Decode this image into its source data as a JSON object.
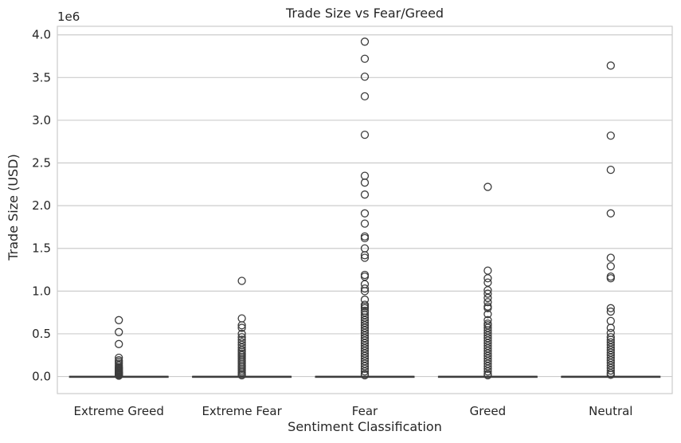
{
  "chart_data": {
    "type": "box",
    "title": "Trade Size vs Fear/Greed",
    "xlabel": "Sentiment Classification",
    "ylabel": "Trade Size (USD)",
    "y_offset_label": "1e6",
    "categories": [
      "Extreme Greed",
      "Extreme Fear",
      "Fear",
      "Greed",
      "Neutral"
    ],
    "ylim": [
      -0.2,
      4.1
    ],
    "yticks": [
      0.0,
      0.5,
      1.0,
      1.5,
      2.0,
      2.5,
      3.0,
      3.5,
      4.0
    ],
    "ytick_labels": [
      "0.0",
      "0.5",
      "1.0",
      "1.5",
      "2.0",
      "2.5",
      "3.0",
      "3.5",
      "4.0"
    ],
    "grid": true,
    "boxes": [
      {
        "category": "Extreme Greed",
        "q1": 0.0,
        "median": 0.0005,
        "q3": 0.001,
        "whisker_low": 0.0,
        "whisker_high": 0.007,
        "outliers": [
          0.66,
          0.52,
          0.38,
          0.22,
          0.19,
          0.17,
          0.15,
          0.13,
          0.11,
          0.1,
          0.09,
          0.08,
          0.07,
          0.06,
          0.05,
          0.045,
          0.04,
          0.035,
          0.03,
          0.025,
          0.02,
          0.015,
          0.01
        ]
      },
      {
        "category": "Extreme Fear",
        "q1": 0.0,
        "median": 0.0005,
        "q3": 0.001,
        "whisker_low": 0.0,
        "whisker_high": 0.007,
        "outliers": [
          1.12,
          0.68,
          0.6,
          0.57,
          0.5,
          0.46,
          0.43,
          0.4,
          0.37,
          0.34,
          0.31,
          0.29,
          0.27,
          0.25,
          0.23,
          0.21,
          0.19,
          0.17,
          0.15,
          0.13,
          0.11,
          0.09,
          0.07,
          0.05,
          0.03,
          0.015
        ]
      },
      {
        "category": "Fear",
        "q1": 0.0,
        "median": 0.0005,
        "q3": 0.001,
        "whisker_low": 0.0,
        "whisker_high": 0.007,
        "outliers": [
          3.92,
          3.72,
          3.51,
          3.28,
          2.83,
          2.35,
          2.27,
          2.13,
          1.91,
          1.79,
          1.64,
          1.62,
          1.5,
          1.42,
          1.39,
          1.19,
          1.17,
          1.08,
          1.03,
          1.0,
          0.9,
          0.84,
          0.82,
          0.8,
          0.77,
          0.75,
          0.72,
          0.69,
          0.66,
          0.63,
          0.6,
          0.57,
          0.54,
          0.51,
          0.48,
          0.45,
          0.42,
          0.39,
          0.36,
          0.33,
          0.3,
          0.27,
          0.24,
          0.21,
          0.18,
          0.15,
          0.12,
          0.09,
          0.06,
          0.03,
          0.015
        ]
      },
      {
        "category": "Greed",
        "q1": 0.0,
        "median": 0.0005,
        "q3": 0.001,
        "whisker_low": 0.0,
        "whisker_high": 0.007,
        "outliers": [
          2.22,
          1.24,
          1.15,
          1.1,
          1.01,
          0.97,
          0.92,
          0.87,
          0.82,
          0.8,
          0.73,
          0.66,
          0.62,
          0.6,
          0.57,
          0.54,
          0.51,
          0.48,
          0.45,
          0.42,
          0.39,
          0.36,
          0.33,
          0.3,
          0.27,
          0.24,
          0.21,
          0.18,
          0.15,
          0.12,
          0.09,
          0.06,
          0.03,
          0.015
        ]
      },
      {
        "category": "Neutral",
        "q1": 0.0,
        "median": 0.0005,
        "q3": 0.001,
        "whisker_low": 0.0,
        "whisker_high": 0.007,
        "outliers": [
          3.64,
          2.82,
          2.42,
          1.91,
          1.39,
          1.29,
          1.17,
          1.15,
          0.8,
          0.76,
          0.65,
          0.57,
          0.51,
          0.46,
          0.43,
          0.4,
          0.37,
          0.34,
          0.31,
          0.28,
          0.25,
          0.22,
          0.19,
          0.16,
          0.13,
          0.1,
          0.07,
          0.04,
          0.02
        ]
      }
    ],
    "colors": {
      "box_edge": "#3d3d3d",
      "box_fill": "#ffffff",
      "grid": "#cccccc",
      "spine": "#cccccc",
      "outlier_edge": "#3d3d3d"
    }
  }
}
